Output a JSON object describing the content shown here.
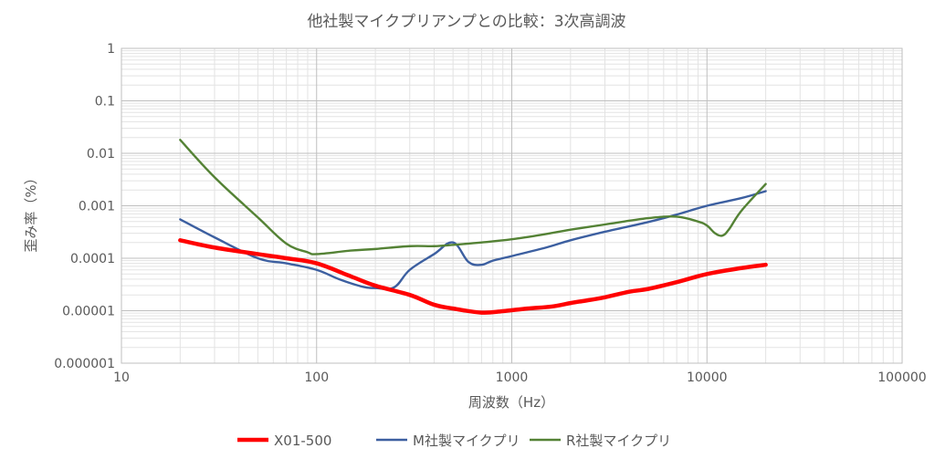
{
  "chart_data": {
    "type": "line",
    "title": "他社製マイクプリアンプとの比較：3次高調波",
    "xlabel": "周波数（Hz）",
    "ylabel": "歪み率（%）",
    "x_scale": "log",
    "y_scale": "log",
    "xlim": [
      10,
      100000
    ],
    "ylim": [
      1e-06,
      1
    ],
    "x_ticks": [
      10,
      100,
      1000,
      10000,
      100000
    ],
    "x_tick_labels": [
      "10",
      "100",
      "1000",
      "10000",
      "100000"
    ],
    "y_ticks": [
      1,
      0.1,
      0.01,
      0.001,
      0.0001,
      1e-05,
      1e-06
    ],
    "y_tick_labels": [
      "1",
      "0.1",
      "0.01",
      "0.001",
      "0.0001",
      "0.00001",
      "0.000001"
    ],
    "grid": true,
    "legend_position": "bottom",
    "series": [
      {
        "name": "X01-500",
        "color": "#ff0000",
        "x": [
          20,
          30,
          50,
          70,
          100,
          150,
          200,
          300,
          400,
          500,
          700,
          900,
          1200,
          1600,
          2000,
          2500,
          3000,
          4000,
          5000,
          7000,
          10000,
          15000,
          20000
        ],
        "y": [
          0.00022,
          0.00016,
          0.00012,
          0.0001,
          8e-05,
          4.5e-05,
          3e-05,
          2e-05,
          1.3e-05,
          1.1e-05,
          9.2e-06,
          9.8e-06,
          1.1e-05,
          1.2e-05,
          1.4e-05,
          1.6e-05,
          1.8e-05,
          2.3e-05,
          2.6e-05,
          3.5e-05,
          5e-05,
          6.5e-05,
          7.5e-05
        ]
      },
      {
        "name": "M社製マイクプリ",
        "color": "#3c5fa0",
        "x": [
          20,
          30,
          50,
          70,
          100,
          130,
          170,
          200,
          250,
          300,
          400,
          500,
          600,
          700,
          800,
          1000,
          1500,
          2000,
          3000,
          5000,
          7000,
          10000,
          15000,
          20000
        ],
        "y": [
          0.00055,
          0.00025,
          0.0001,
          8e-05,
          6e-05,
          4e-05,
          2.9e-05,
          2.7e-05,
          2.8e-05,
          6e-05,
          0.00012,
          0.0002,
          8.5e-05,
          7.5e-05,
          9e-05,
          0.00011,
          0.00016,
          0.00022,
          0.00032,
          0.00049,
          0.00068,
          0.001,
          0.0014,
          0.0019
        ]
      },
      {
        "name": "R社製マイクプリ",
        "color": "#548235",
        "x": [
          20,
          30,
          50,
          70,
          90,
          100,
          150,
          200,
          300,
          400,
          500,
          700,
          1000,
          1500,
          2000,
          3000,
          5000,
          7000,
          9000,
          10000,
          11000,
          12000,
          13000,
          15000,
          20000
        ],
        "y": [
          0.018,
          0.0035,
          0.0006,
          0.00019,
          0.00013,
          0.00012,
          0.00014,
          0.00015,
          0.00017,
          0.00017,
          0.00018,
          0.0002,
          0.00023,
          0.00029,
          0.00035,
          0.00044,
          0.00058,
          0.00062,
          0.0005,
          0.00042,
          0.0003,
          0.00027,
          0.00036,
          0.0008,
          0.0026
        ]
      }
    ]
  }
}
